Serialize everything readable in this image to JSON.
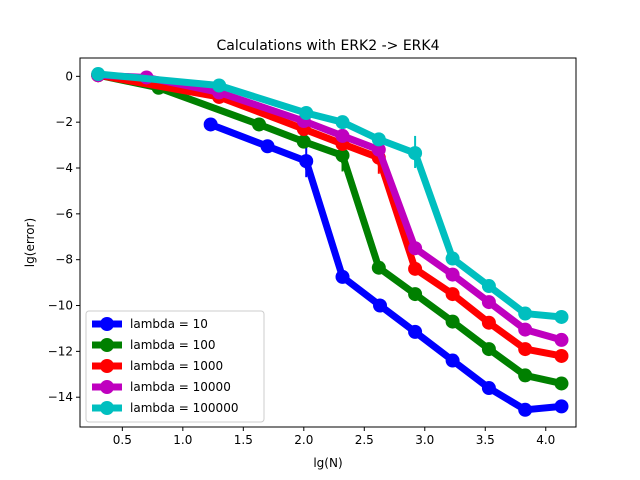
{
  "chart_data": {
    "type": "line",
    "title": "Calculations with ERK2 -> ERK4",
    "xlabel": "lg(N)",
    "ylabel": "lg(error)",
    "xlim": [
      0.15,
      4.25
    ],
    "ylim": [
      -15.3,
      0.8
    ],
    "xticks": [
      0.5,
      1.0,
      1.5,
      2.0,
      2.5,
      3.0,
      3.5,
      4.0
    ],
    "xtick_labels": [
      "0.5",
      "1.0",
      "1.5",
      "2.0",
      "2.5",
      "3.0",
      "3.5",
      "4.0"
    ],
    "yticks": [
      0,
      -2,
      -4,
      -6,
      -8,
      -10,
      -12,
      -14
    ],
    "ytick_labels": [
      "0",
      "−2",
      "−4",
      "−6",
      "−8",
      "−10",
      "−12",
      "−14"
    ],
    "grid": false,
    "legend_position": "lower-left",
    "series": [
      {
        "name": "lambda = 10",
        "color": "#0000ff",
        "x": [
          1.23,
          1.7,
          2.02,
          2.32,
          2.63,
          2.92,
          3.23,
          3.53,
          3.83,
          4.13
        ],
        "y": [
          -2.1,
          -3.05,
          -3.7,
          -8.75,
          -10.0,
          -11.15,
          -12.4,
          -13.6,
          -14.55,
          -14.4
        ],
        "errbars": [
          {
            "x": 2.02,
            "lo": -4.4,
            "hi": -3.1
          }
        ]
      },
      {
        "name": "lambda = 100",
        "color": "#008000",
        "x": [
          0.3,
          0.8,
          1.63,
          2.0,
          2.32,
          2.62,
          2.92,
          3.23,
          3.53,
          3.83,
          4.13
        ],
        "y": [
          0.05,
          -0.5,
          -2.1,
          -2.85,
          -3.45,
          -8.35,
          -9.5,
          -10.7,
          -11.9,
          -13.05,
          -13.4
        ],
        "errbars": [
          {
            "x": 2.32,
            "lo": -4.15,
            "hi": -2.9
          }
        ]
      },
      {
        "name": "lambda = 1000",
        "color": "#ff0000",
        "x": [
          0.3,
          1.3,
          2.0,
          2.32,
          2.62,
          2.92,
          3.23,
          3.53,
          3.83,
          4.13
        ],
        "y": [
          0.05,
          -0.9,
          -2.3,
          -2.95,
          -3.55,
          -8.4,
          -9.5,
          -10.75,
          -11.9,
          -12.2
        ],
        "errbars": [
          {
            "x": 2.62,
            "lo": -4.25,
            "hi": -3.0
          }
        ]
      },
      {
        "name": "lambda = 10000",
        "color": "#bf00bf",
        "x": [
          0.3,
          0.7,
          1.3,
          2.0,
          2.32,
          2.62,
          2.92,
          3.23,
          3.53,
          3.83,
          4.13
        ],
        "y": [
          0.05,
          -0.05,
          -0.7,
          -1.95,
          -2.6,
          -3.2,
          -7.5,
          -8.65,
          -9.85,
          -11.05,
          -11.5
        ],
        "errbars": []
      },
      {
        "name": "lambda = 100000",
        "color": "#00bfbf",
        "x": [
          0.3,
          1.3,
          2.02,
          2.32,
          2.62,
          2.92,
          3.23,
          3.53,
          3.83,
          4.13
        ],
        "y": [
          0.1,
          -0.4,
          -1.6,
          -2.0,
          -2.75,
          -3.35,
          -7.95,
          -9.15,
          -10.35,
          -10.5
        ],
        "errbars": [
          {
            "x": 2.92,
            "lo": -4.0,
            "hi": -2.6
          }
        ]
      }
    ]
  }
}
